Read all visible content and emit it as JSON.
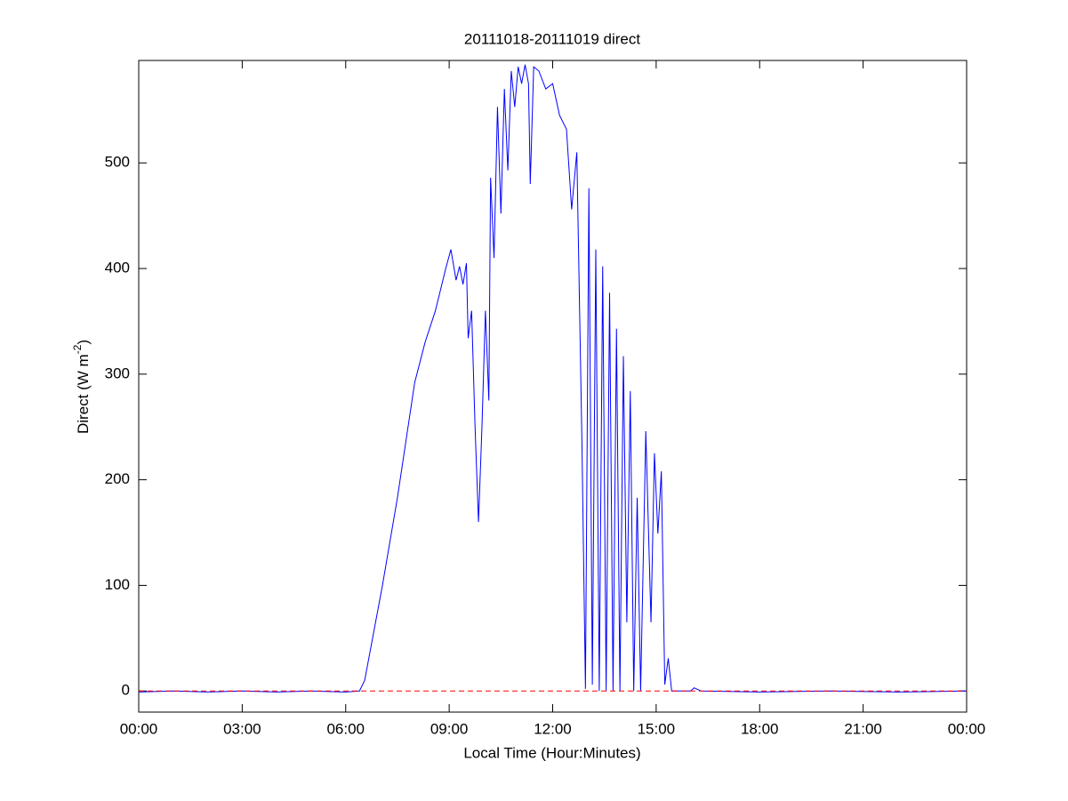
{
  "chart_data": {
    "type": "line",
    "title": "20111018-20111019 direct",
    "x_label": "Local Time (Hour:Minutes)",
    "y_label": "Direct (W m",
    "y_label_sup": "-2",
    "y_label_end": ")",
    "x": [
      0,
      1,
      2,
      3,
      4,
      5,
      6,
      6.4,
      6.55,
      7.06,
      7.5,
      8.0,
      8.3,
      8.6,
      8.9,
      9.05,
      9.2,
      9.3,
      9.4,
      9.5,
      9.55,
      9.65,
      9.75,
      9.85,
      9.95,
      10.05,
      10.15,
      10.2,
      10.3,
      10.4,
      10.5,
      10.6,
      10.7,
      10.8,
      10.9,
      11.0,
      11.1,
      11.2,
      11.3,
      11.35,
      11.45,
      11.6,
      11.8,
      12.0,
      12.2,
      12.4,
      12.55,
      12.7,
      12.85,
      12.95,
      13.05,
      13.15,
      13.25,
      13.35,
      13.45,
      13.55,
      13.65,
      13.75,
      13.85,
      13.95,
      14.05,
      14.15,
      14.25,
      14.35,
      14.45,
      14.55,
      14.7,
      14.85,
      14.95,
      15.05,
      15.15,
      15.25,
      15.35,
      15.45,
      16.0,
      16.1,
      16.3,
      18,
      20,
      22,
      24
    ],
    "series": [
      {
        "name": "direct",
        "color": "#0000ff",
        "values": [
          -1,
          0,
          -1,
          0,
          -1,
          0,
          -1,
          0,
          10,
          99,
          183,
          292,
          330,
          360,
          400,
          418,
          389,
          402,
          385,
          405,
          334,
          360,
          250,
          160,
          250,
          360,
          275,
          486,
          410,
          553,
          452,
          570,
          493,
          587,
          553,
          591,
          575,
          593,
          575,
          480,
          591,
          587,
          570,
          575,
          545,
          532,
          456,
          510,
          232,
          2,
          476,
          6,
          418,
          0,
          402,
          0,
          377,
          0,
          343,
          0,
          317,
          65,
          284,
          0,
          183,
          0,
          246,
          65,
          225,
          149,
          208,
          6,
          31,
          0,
          0,
          3,
          0,
          -1,
          0,
          -1,
          0
        ]
      }
    ],
    "zero_line": {
      "value": 0,
      "color": "#ff0000"
    },
    "xlim": [
      0,
      24
    ],
    "xticks": [
      {
        "value": 0,
        "label": "00:00"
      },
      {
        "value": 3,
        "label": "03:00"
      },
      {
        "value": 6,
        "label": "06:00"
      },
      {
        "value": 9,
        "label": "09:00"
      },
      {
        "value": 12,
        "label": "12:00"
      },
      {
        "value": 15,
        "label": "15:00"
      },
      {
        "value": 18,
        "label": "18:00"
      },
      {
        "value": 21,
        "label": "21:00"
      },
      {
        "value": 24,
        "label": "00:00"
      }
    ],
    "ylim": [
      -20,
      597
    ],
    "yticks": [
      0,
      100,
      200,
      300,
      400,
      500
    ]
  }
}
